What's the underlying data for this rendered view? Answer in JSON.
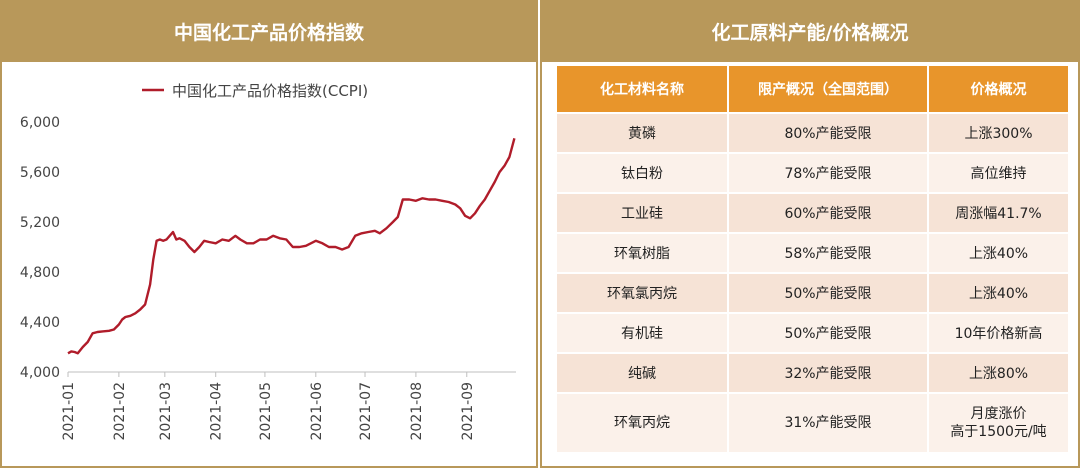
{
  "left_title": "中国化工产品价格指数",
  "right_title": "化工原料产能/价格概况",
  "chart_data": {
    "type": "line",
    "series": [
      {
        "name": "中国化工产品价格指数(CCPI)",
        "color": "#b01c2a",
        "x": [
          "2021-01-01",
          "2021-01-03",
          "2021-01-05",
          "2021-01-07",
          "2021-01-10",
          "2021-01-13",
          "2021-01-16",
          "2021-01-19",
          "2021-01-22",
          "2021-01-26",
          "2021-01-29",
          "2021-02-01",
          "2021-02-03",
          "2021-02-05",
          "2021-02-08",
          "2021-02-11",
          "2021-02-14",
          "2021-02-17",
          "2021-02-20",
          "2021-02-22",
          "2021-02-24",
          "2021-02-26",
          "2021-02-28",
          "2021-03-02",
          "2021-03-04",
          "2021-03-06",
          "2021-03-08",
          "2021-03-10",
          "2021-03-13",
          "2021-03-16",
          "2021-03-19",
          "2021-03-22",
          "2021-03-25",
          "2021-03-28",
          "2021-04-01",
          "2021-04-05",
          "2021-04-09",
          "2021-04-13",
          "2021-04-16",
          "2021-04-20",
          "2021-04-24",
          "2021-04-28",
          "2021-05-02",
          "2021-05-06",
          "2021-05-10",
          "2021-05-14",
          "2021-05-18",
          "2021-05-22",
          "2021-05-26",
          "2021-05-29",
          "2021-06-01",
          "2021-06-05",
          "2021-06-09",
          "2021-06-13",
          "2021-06-17",
          "2021-06-21",
          "2021-06-25",
          "2021-06-29",
          "2021-07-03",
          "2021-07-07",
          "2021-07-10",
          "2021-07-14",
          "2021-07-18",
          "2021-07-21",
          "2021-07-24",
          "2021-07-28",
          "2021-08-01",
          "2021-08-05",
          "2021-08-09",
          "2021-08-13",
          "2021-08-17",
          "2021-08-21",
          "2021-08-25",
          "2021-08-28",
          "2021-08-31",
          "2021-09-03",
          "2021-09-06",
          "2021-09-09",
          "2021-09-12",
          "2021-09-15",
          "2021-09-18",
          "2021-09-21",
          "2021-09-24",
          "2021-09-27",
          "2021-09-30"
        ],
        "y": [
          4150,
          4165,
          4160,
          4150,
          4200,
          4240,
          4310,
          4320,
          4325,
          4330,
          4340,
          4380,
          4420,
          4440,
          4450,
          4470,
          4500,
          4540,
          4700,
          4900,
          5050,
          5060,
          5050,
          5060,
          5090,
          5120,
          5060,
          5070,
          5050,
          5000,
          4960,
          5000,
          5050,
          5040,
          5030,
          5060,
          5050,
          5090,
          5060,
          5030,
          5030,
          5060,
          5060,
          5090,
          5070,
          5060,
          5000,
          5000,
          5010,
          5030,
          5050,
          5030,
          5000,
          5000,
          4980,
          5000,
          5090,
          5110,
          5120,
          5130,
          5110,
          5150,
          5200,
          5240,
          5380,
          5380,
          5370,
          5390,
          5380,
          5380,
          5370,
          5360,
          5340,
          5310,
          5250,
          5230,
          5270,
          5330,
          5380,
          5450,
          5520,
          5600,
          5650,
          5720,
          5870
        ]
      }
    ],
    "xticks": [
      "2021-01",
      "2021-02",
      "2021-03",
      "2021-04",
      "2021-05",
      "2021-06",
      "2021-07",
      "2021-08",
      "2021-09"
    ],
    "yticks": [
      "4,000",
      "4,400",
      "4,800",
      "5,200",
      "5,600",
      "6,000"
    ],
    "ylim": [
      4000,
      6000
    ],
    "legend_position": "top",
    "grid": false
  },
  "table": {
    "headers": [
      "化工材料名称",
      "限产概况（全国范围）",
      "价格概况"
    ],
    "rows": [
      [
        "黄磷",
        "80%产能受限",
        "上涨300%"
      ],
      [
        "钛白粉",
        "78%产能受限",
        "高位维持"
      ],
      [
        "工业硅",
        "60%产能受限",
        "周涨幅41.7%"
      ],
      [
        "环氧树脂",
        "58%产能受限",
        "上涨40%"
      ],
      [
        "环氧氯丙烷",
        "50%产能受限",
        "上涨40%"
      ],
      [
        "有机硅",
        "50%产能受限",
        "10年价格新高"
      ],
      [
        "纯碱",
        "32%产能受限",
        "上涨80%"
      ],
      [
        "环氧丙烷",
        "31%产能受限",
        "月度涨价\n高于1500元/吨"
      ]
    ]
  },
  "colors": {
    "header_bg": "#b8985a",
    "table_header_bg": "#e8952b",
    "row_odd_bg": "#f6e3d6",
    "row_even_bg": "#fbf1ea",
    "line_color": "#b01c2a"
  }
}
